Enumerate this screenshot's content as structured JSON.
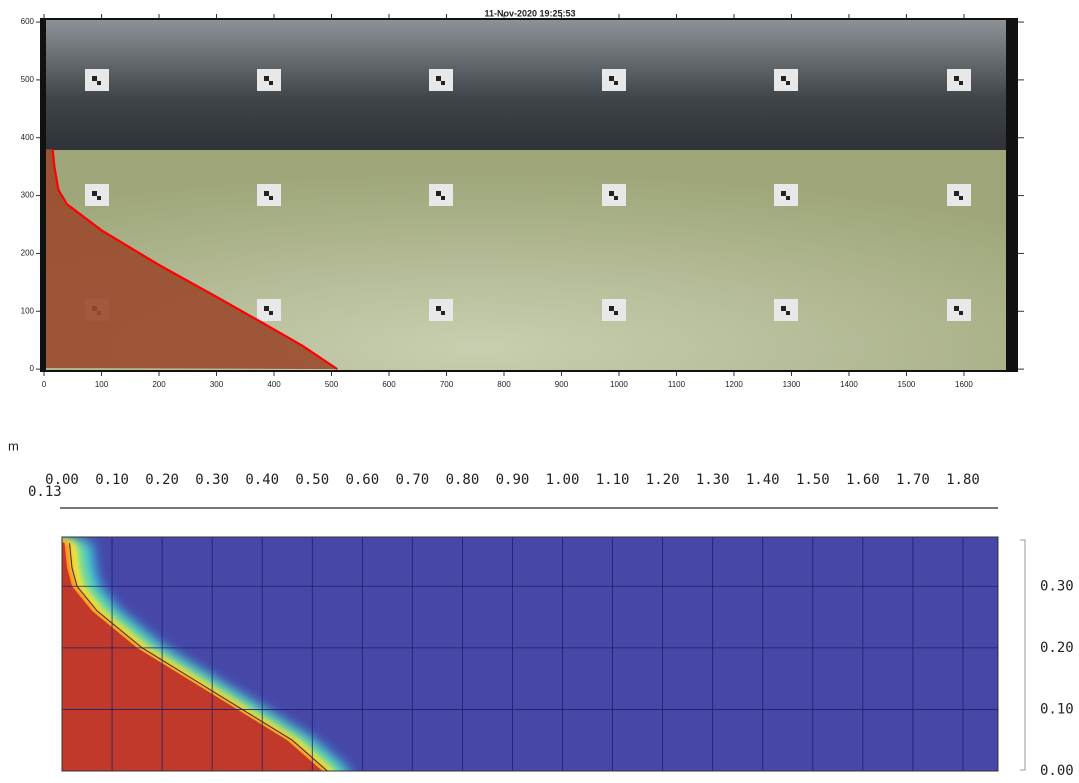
{
  "chart_data": [
    {
      "type": "line",
      "title": "11-Nov-2020 19:25:53",
      "color": "#ff0000",
      "x": [
        510,
        450,
        380,
        300,
        200,
        100,
        40,
        25,
        18,
        15
      ],
      "values": [
        0,
        40,
        80,
        125,
        180,
        240,
        285,
        310,
        350,
        380
      ],
      "xlim": [
        -7,
        1694
      ],
      "ylim": [
        -5,
        607
      ],
      "xticks": [
        0,
        100,
        200,
        300,
        400,
        500,
        600,
        700,
        800,
        900,
        1000,
        1100,
        1200,
        1300,
        1400,
        1500,
        1600
      ],
      "yticks": [
        0,
        100,
        200,
        300,
        400,
        500,
        600
      ]
    },
    {
      "type": "area",
      "x_label": "m",
      "annotation": "0.13",
      "color": "#c0392b",
      "x": [
        0.52,
        0.45,
        0.35,
        0.25,
        0.15,
        0.06,
        0.02,
        0.01,
        0.005
      ],
      "values": [
        0,
        0.05,
        0.1,
        0.15,
        0.2,
        0.26,
        0.3,
        0.33,
        0.37
      ],
      "xlim": [
        0,
        1.87
      ],
      "ylim": [
        0,
        0.38
      ],
      "xticks": [
        {
          "value": 0,
          "label": "0.00"
        },
        {
          "value": 0.1,
          "label": "0.10"
        },
        {
          "value": 0.2,
          "label": "0.20"
        },
        {
          "value": 0.3,
          "label": "0.30"
        },
        {
          "value": 0.4,
          "label": "0.40"
        },
        {
          "value": 0.5,
          "label": "0.50"
        },
        {
          "value": 0.6,
          "label": "0.60"
        },
        {
          "value": 0.7,
          "label": "0.70"
        },
        {
          "value": 0.8,
          "label": "0.80"
        },
        {
          "value": 0.9,
          "label": "0.90"
        },
        {
          "value": 1.0,
          "label": "1.00"
        },
        {
          "value": 1.1,
          "label": "1.10"
        },
        {
          "value": 1.2,
          "label": "1.20"
        },
        {
          "value": 1.3,
          "label": "1.30"
        },
        {
          "value": 1.4,
          "label": "1.40"
        },
        {
          "value": 1.5,
          "label": "1.50"
        },
        {
          "value": 1.6,
          "label": "1.60"
        },
        {
          "value": 1.7,
          "label": "1.70"
        },
        {
          "value": 1.8,
          "label": "1.80"
        }
      ],
      "yticks": [
        {
          "value": 0,
          "label": "0.00"
        },
        {
          "value": 0.1,
          "label": "0.10"
        },
        {
          "value": 0.2,
          "label": "0.20"
        },
        {
          "value": 0.3,
          "label": "0.30"
        }
      ]
    }
  ]
}
